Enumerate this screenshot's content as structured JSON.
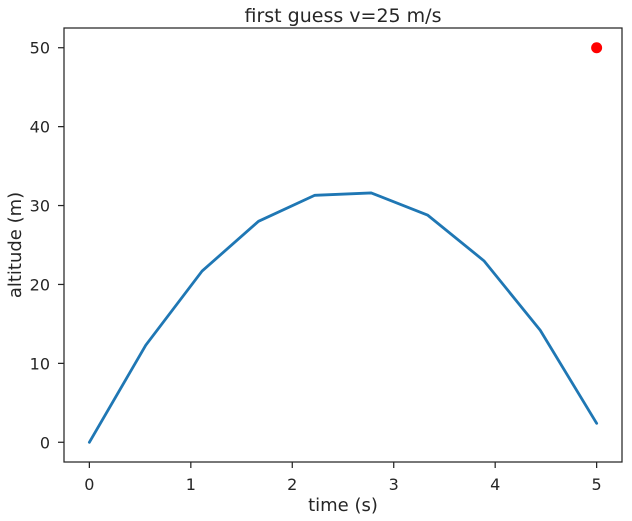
{
  "chart_data": {
    "type": "line",
    "title": "first guess v=25 m/s",
    "xlabel": "time (s)",
    "ylabel": "altitude (m)",
    "xlim": [
      -0.25,
      5.25
    ],
    "ylim": [
      -2.5,
      52.5
    ],
    "xticks": [
      0,
      1,
      2,
      3,
      4,
      5
    ],
    "yticks": [
      0,
      10,
      20,
      30,
      40,
      50
    ],
    "grid": false,
    "series": [
      {
        "type": "line",
        "color": "#1f77b4",
        "x": [
          0,
          0.556,
          1.111,
          1.667,
          2.222,
          2.778,
          3.333,
          3.889,
          4.444,
          5.0
        ],
        "y": [
          0,
          12.3,
          21.7,
          28.0,
          31.3,
          31.6,
          28.8,
          23.0,
          14.2,
          2.4
        ]
      },
      {
        "type": "scatter",
        "color": "#ff0000",
        "x": [
          5.0
        ],
        "y": [
          50.0
        ]
      }
    ]
  }
}
